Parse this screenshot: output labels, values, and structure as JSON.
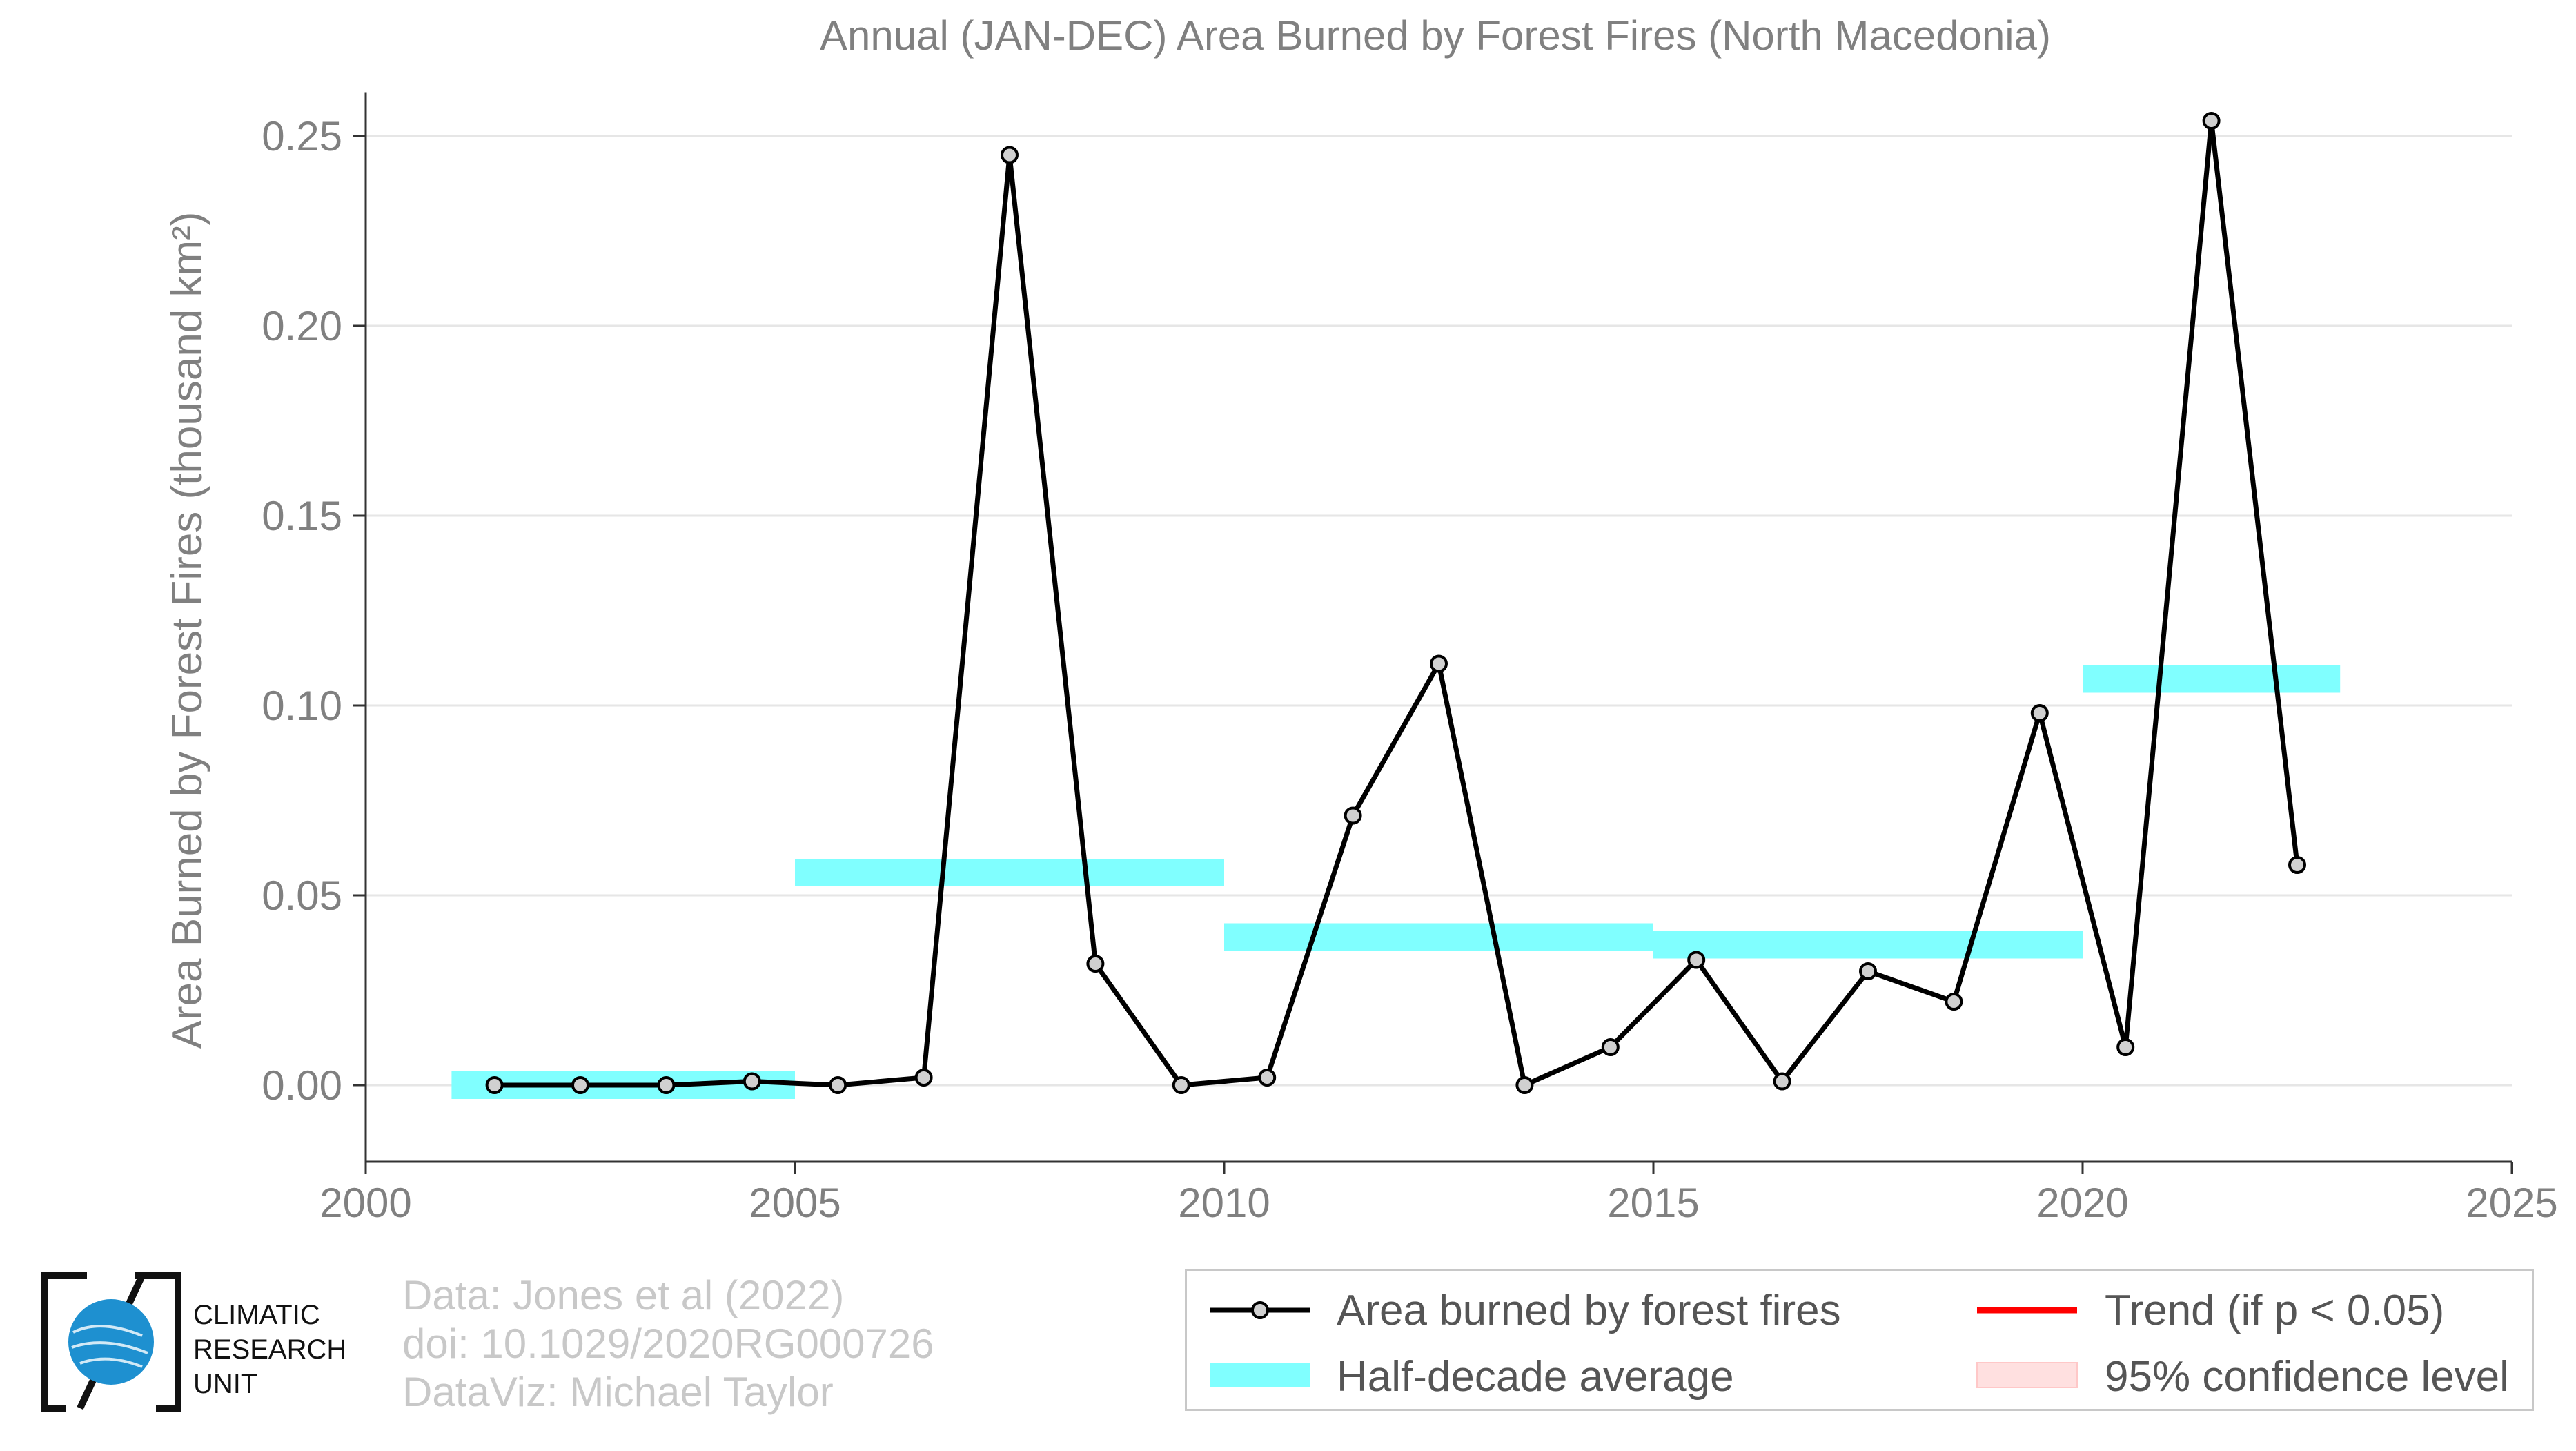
{
  "chart_data": {
    "type": "line",
    "title": "Annual (JAN-DEC) Area Burned by Forest Fires (North Macedonia)",
    "ylabel": "Area Burned by Forest Fires (thousand km²)",
    "xlim": [
      2000,
      2025
    ],
    "ylim": [
      -0.02,
      0.265
    ],
    "x_ticks": [
      2000,
      2005,
      2010,
      2015,
      2020,
      2025
    ],
    "y_ticks": [
      0.0,
      0.05,
      0.1,
      0.15,
      0.2,
      0.25
    ],
    "y_tick_labels": [
      "0.00",
      "0.05",
      "0.10",
      "0.15",
      "0.20",
      "0.25"
    ],
    "grid": "horizontal",
    "series": [
      {
        "name": "Area burned by forest fires",
        "color": "#000000",
        "x": [
          2001.5,
          2002.5,
          2003.5,
          2004.5,
          2005.5,
          2006.5,
          2007.5,
          2008.5,
          2009.5,
          2010.5,
          2011.5,
          2012.5,
          2013.5,
          2014.5,
          2015.5,
          2016.5,
          2017.5,
          2018.5,
          2019.5,
          2020.5,
          2021.5,
          2022.5
        ],
        "values": [
          0.0,
          0.0,
          0.0,
          0.001,
          0.0,
          0.002,
          0.245,
          0.032,
          0.0,
          0.002,
          0.071,
          0.111,
          0.0,
          0.01,
          0.033,
          0.001,
          0.03,
          0.022,
          0.098,
          0.01,
          0.254,
          0.058
        ]
      }
    ],
    "half_decade_averages": {
      "name": "Half-decade average",
      "color": "#80ffff",
      "segments": [
        {
          "x0": 2001,
          "x1": 2005,
          "value": 0.0
        },
        {
          "x0": 2005,
          "x1": 2010,
          "value": 0.056
        },
        {
          "x0": 2010,
          "x1": 2015,
          "value": 0.039
        },
        {
          "x0": 2015,
          "x1": 2020,
          "value": 0.037
        },
        {
          "x0": 2020,
          "x1": 2023,
          "value": 0.107
        }
      ]
    },
    "legend": {
      "placement": "bottom-right",
      "items": [
        {
          "label": "Area burned by forest fires",
          "color": "#000000"
        },
        {
          "label": "Trend (if p < 0.05)",
          "color": "#ff0000"
        },
        {
          "label": "Half-decade average",
          "color": "#80ffff"
        },
        {
          "label": "95% confidence level",
          "color": "#ffe0e0"
        }
      ]
    }
  },
  "credits": {
    "line1": "Data: Jones et al (2022)",
    "line2": "doi: 10.1029/2020RG000726",
    "line3": "DataViz: Michael Taylor"
  },
  "logo": {
    "line1": "CLIMATIC",
    "line2": "RESEARCH",
    "line3": "UNIT",
    "color": "#1e90d0"
  }
}
